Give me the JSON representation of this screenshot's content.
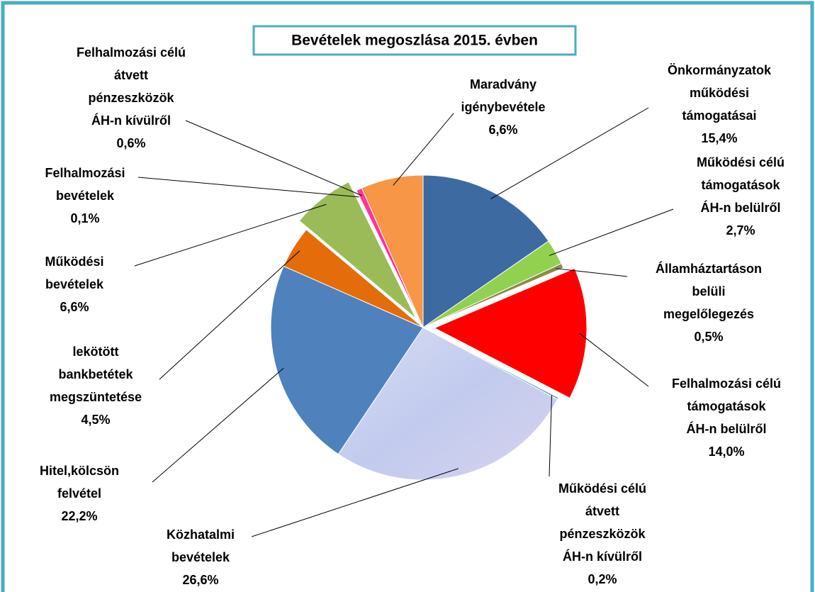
{
  "chart_data": {
    "type": "pie",
    "title": "Bevételek megoszlása 2015. évben",
    "categories": [
      "Önkormányzatok működési támogatásai",
      "Működési célú támogatások ÁH-n belülről",
      "Államháztartáson belüli megelőlegezés",
      "Felhalmozási célú támogatások ÁH-n belülről",
      "Működési célú átvett pénzeszközök ÁH-n kívülről",
      "Közhatalmi bevételek",
      "Hitel,kölcsön felvétel",
      "lekötött bankbetétek megszüntetése",
      "Működési bevételek",
      "Felhalmozási bevételek",
      "Felhalmozási célú átvett pénzeszközök ÁH-n kívülről",
      "Maradvány igénybevétele"
    ],
    "values": [
      15.4,
      2.7,
      0.5,
      14.0,
      0.2,
      26.6,
      22.2,
      4.5,
      6.6,
      0.1,
      0.6,
      6.6
    ],
    "value_labels": [
      "15,4%",
      "2,7%",
      "0,5%",
      "14,0%",
      "0,2%",
      "26,6%",
      "22,2%",
      "4,5%",
      "6,6%",
      "0,1%",
      "0,6%",
      "6,6%"
    ],
    "colors": [
      "#3d6aa1",
      "#92d050",
      "#8b8b45",
      "#ff0000",
      "#4bacc6",
      "#c9d0ee",
      "#4f81bd",
      "#e46c0a",
      "#9bbb59",
      "#ffff00",
      "#ff3399",
      "#f79646"
    ]
  }
}
